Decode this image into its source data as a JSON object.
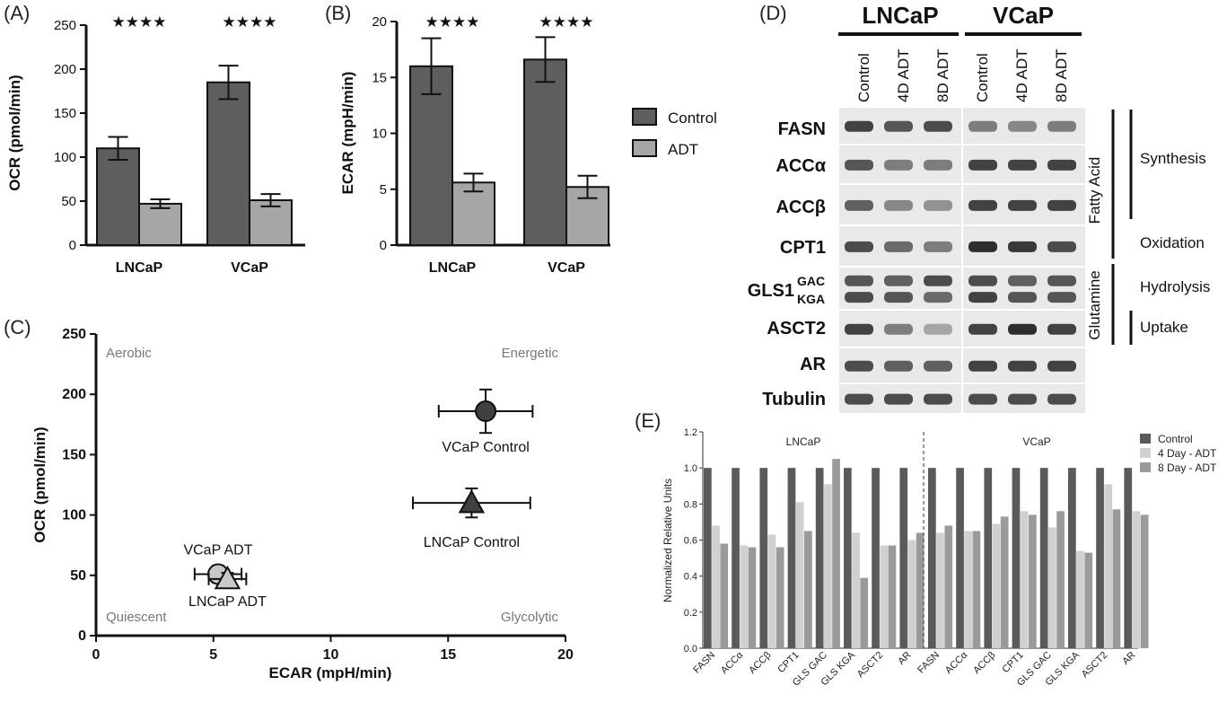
{
  "chart_data": [
    {
      "panel": "(A)",
      "type": "bar",
      "categories": [
        "LNCaP",
        "VCaP"
      ],
      "series": [
        {
          "name": "Control",
          "values": [
            110,
            185
          ],
          "errors": [
            13,
            19
          ],
          "color": "#5e5e5e"
        },
        {
          "name": "ADT",
          "values": [
            47,
            51
          ],
          "errors": [
            5,
            7
          ],
          "color": "#a6a6a6"
        }
      ],
      "ylabel": "OCR (pmol/min)",
      "ylim": [
        0,
        250
      ],
      "yticks": [
        "0",
        "50",
        "100",
        "150",
        "200",
        "250"
      ],
      "significance": [
        "★★★★",
        "★★★★"
      ]
    },
    {
      "panel": "(B)",
      "type": "bar",
      "categories": [
        "LNCaP",
        "VCaP"
      ],
      "series": [
        {
          "name": "Control",
          "values": [
            16.0,
            16.6
          ],
          "errors": [
            2.5,
            2.0
          ],
          "color": "#5e5e5e"
        },
        {
          "name": "ADT",
          "values": [
            5.6,
            5.2
          ],
          "errors": [
            0.8,
            1.0
          ],
          "color": "#a6a6a6"
        }
      ],
      "ylabel": "ECAR (mpH/min)",
      "ylim": [
        0,
        20
      ],
      "yticks": [
        "0",
        "5",
        "10",
        "15",
        "20"
      ],
      "significance": [
        "★★★★",
        "★★★★"
      ],
      "legend": [
        {
          "label": "Control",
          "color": "#5e5e5e"
        },
        {
          "label": "ADT",
          "color": "#a6a6a6"
        }
      ]
    },
    {
      "panel": "(C)",
      "type": "scatter",
      "xlabel": "ECAR (mpH/min)",
      "ylabel": "OCR (pmol/min)",
      "xlim": [
        0,
        20
      ],
      "ylim": [
        0,
        250
      ],
      "xticks": [
        "0",
        "5",
        "10",
        "15",
        "20"
      ],
      "yticks": [
        "0",
        "50",
        "100",
        "150",
        "200",
        "250"
      ],
      "quadrants": {
        "top_left": "Aerobic",
        "top_right": "Energetic",
        "bottom_left": "Quiescent",
        "bottom_right": "Glycolytic"
      },
      "points": [
        {
          "label": "VCaP Control",
          "x": 16.6,
          "y": 186,
          "xerr": 2.0,
          "yerr": 18,
          "marker": "circle",
          "color": "#404040"
        },
        {
          "label": "LNCaP Control",
          "x": 16.0,
          "y": 110,
          "xerr": 2.5,
          "yerr": 12,
          "marker": "triangle",
          "color": "#404040"
        },
        {
          "label": "VCaP ADT",
          "x": 5.2,
          "y": 51,
          "xerr": 1.0,
          "yerr": 7,
          "marker": "circle",
          "color": "#c8c8c8"
        },
        {
          "label": "LNCaP ADT",
          "x": 5.6,
          "y": 47,
          "xerr": 0.8,
          "yerr": 5,
          "marker": "triangle",
          "color": "#c8c8c8"
        }
      ]
    },
    {
      "panel": "(E)",
      "type": "bar",
      "ylabel": "Normalized Relative Units",
      "ylim": [
        0,
        1.2
      ],
      "yticks": [
        "0.0",
        "0.2",
        "0.4",
        "0.6",
        "0.8",
        "1.0",
        "1.2"
      ],
      "groups": [
        "LNCaP",
        "VCaP"
      ],
      "categories": [
        "FASN",
        "ACCα",
        "ACCβ",
        "CPT1",
        "GLS GAC",
        "GLS KGA",
        "ASCT2",
        "AR"
      ],
      "series": [
        {
          "name": "Control",
          "color": "#5a5a5a",
          "values": {
            "LNCaP": [
              1,
              1,
              1,
              1,
              1,
              1,
              1,
              1
            ],
            "VCaP": [
              1,
              1,
              1,
              1,
              1,
              1,
              1,
              1
            ]
          }
        },
        {
          "name": "4 Day - ADT",
          "color": "#d0d0d0",
          "values": {
            "LNCaP": [
              0.68,
              0.57,
              0.63,
              0.81,
              0.91,
              0.64,
              0.57,
              0.6
            ],
            "VCaP": [
              0.64,
              0.65,
              0.69,
              0.76,
              0.67,
              0.54,
              0.91,
              0.76
            ]
          }
        },
        {
          "name": "8 Day - ADT",
          "color": "#9a9a9a",
          "values": {
            "LNCaP": [
              0.58,
              0.56,
              0.56,
              0.65,
              1.05,
              0.39,
              0.57,
              0.64
            ],
            "VCaP": [
              0.68,
              0.65,
              0.73,
              0.74,
              0.76,
              0.53,
              0.77,
              0.74
            ]
          }
        }
      ]
    }
  ],
  "western_blot": {
    "panel": "(D)",
    "cell_lines": [
      "LNCaP",
      "VCaP"
    ],
    "lanes": [
      "Control",
      "4D ADT",
      "8D ADT",
      "Control",
      "4D ADT",
      "8D ADT"
    ],
    "proteins": [
      "FASN",
      "ACCα",
      "ACCβ",
      "CPT1",
      "GLS1",
      "ASCT2",
      "AR",
      "Tubulin"
    ],
    "gls1_isoforms": [
      "GAC",
      "KGA"
    ],
    "groups": [
      "Fatty Acid",
      "Glutamine"
    ],
    "processes": [
      "Synthesis",
      "Oxidation",
      "Hydrolysis",
      "Uptake"
    ],
    "band_intensity": {
      "FASN": [
        0.85,
        0.75,
        0.8,
        0.55,
        0.5,
        0.55
      ],
      "ACCα": [
        0.75,
        0.55,
        0.55,
        0.85,
        0.85,
        0.85
      ],
      "ACCβ": [
        0.7,
        0.5,
        0.45,
        0.85,
        0.85,
        0.85
      ],
      "CPT1": [
        0.8,
        0.65,
        0.55,
        0.95,
        0.9,
        0.8
      ],
      "GLS1_GAC": [
        0.75,
        0.7,
        0.8,
        0.8,
        0.7,
        0.75
      ],
      "GLS1_KGA": [
        0.8,
        0.75,
        0.65,
        0.85,
        0.75,
        0.75
      ],
      "ASCT2": [
        0.85,
        0.55,
        0.35,
        0.85,
        0.95,
        0.85
      ],
      "AR": [
        0.8,
        0.7,
        0.7,
        0.85,
        0.85,
        0.85
      ],
      "Tubulin": [
        0.8,
        0.8,
        0.8,
        0.8,
        0.8,
        0.8
      ]
    }
  }
}
